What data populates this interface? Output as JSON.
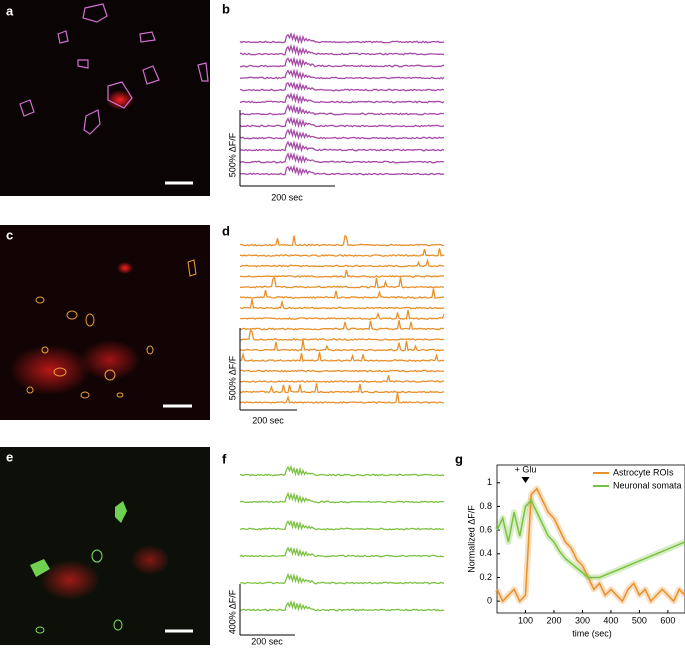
{
  "panel_labels": [
    "a",
    "b",
    "c",
    "d",
    "e",
    "f",
    "g"
  ],
  "scale_labels": {
    "b": {
      "y": "500% ΔF/F",
      "x": "200 sec"
    },
    "d": {
      "y": "500% ΔF/F",
      "x": "200 sec"
    },
    "f": {
      "y": "400% ΔF/F",
      "x": "200 sec"
    }
  },
  "chart_data": {
    "type": "line",
    "xlabel": "time (sec)",
    "ylabel": "Normalized ΔF/F",
    "annotation": "+ Glu",
    "annotation_x": 100,
    "legend": "upper right",
    "x": [
      0,
      20,
      40,
      60,
      80,
      100,
      120,
      140,
      160,
      180,
      200,
      220,
      240,
      260,
      280,
      300,
      320,
      340,
      360,
      380,
      400,
      420,
      440,
      460,
      480,
      500,
      520,
      540,
      560,
      580,
      600,
      620,
      640,
      660
    ],
    "series": [
      {
        "name": "Astrocyte ROIs",
        "color": "#e8912c",
        "values": [
          0.1,
          0.0,
          0.05,
          0.1,
          0.0,
          0.05,
          0.9,
          0.95,
          0.85,
          0.75,
          0.7,
          0.6,
          0.5,
          0.45,
          0.35,
          0.3,
          0.2,
          0.1,
          0.15,
          0.05,
          0.1,
          0.05,
          0.0,
          0.1,
          0.15,
          0.05,
          0.1,
          0.0,
          0.05,
          0.1,
          0.05,
          0.0,
          0.1,
          0.05
        ]
      },
      {
        "name": "Neuronal somata",
        "color": "#7cc242",
        "values": [
          0.6,
          0.7,
          0.5,
          0.75,
          0.55,
          0.8,
          0.85,
          0.75,
          0.65,
          0.55,
          0.5,
          0.42,
          0.36,
          0.32,
          0.28,
          0.24,
          0.2,
          0.2,
          0.2,
          0.22,
          0.24,
          0.26,
          0.28,
          0.3,
          0.32,
          0.34,
          0.36,
          0.38,
          0.4,
          0.42,
          0.44,
          0.46,
          0.48,
          0.5
        ]
      }
    ],
    "xlim": [
      0,
      660
    ],
    "xticks": [
      100,
      200,
      300,
      400,
      500,
      600
    ],
    "ylim": [
      -0.1,
      1.15
    ],
    "yticks": [
      0,
      0.2,
      0.4,
      0.6,
      0.8,
      1
    ]
  }
}
